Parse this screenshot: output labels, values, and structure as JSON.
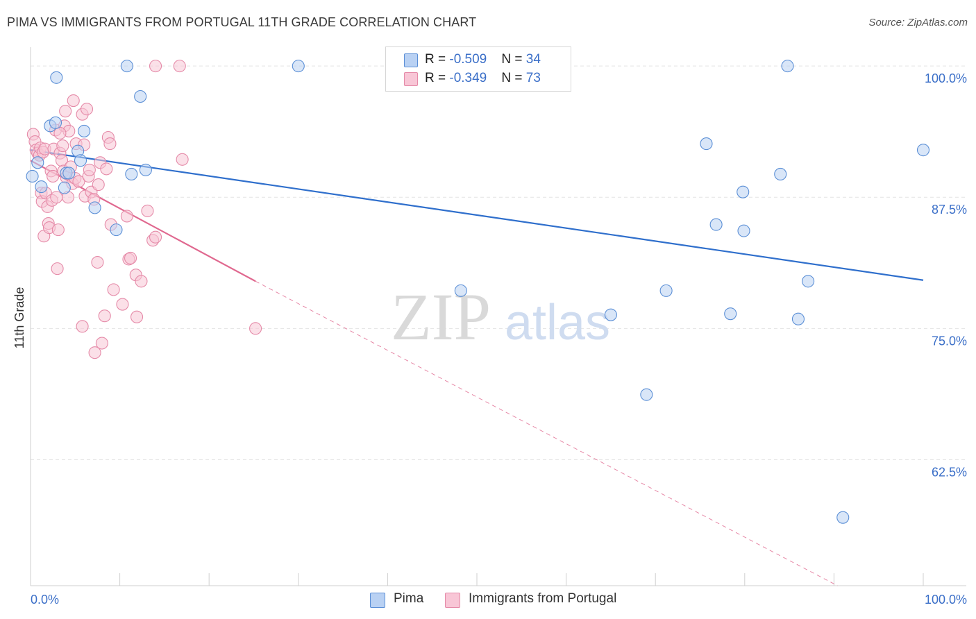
{
  "title": "PIMA VS IMMIGRANTS FROM PORTUGAL 11TH GRADE CORRELATION CHART",
  "source": "Source: ZipAtlas.com",
  "watermark": {
    "zip": "ZIP",
    "atlas": "atlas"
  },
  "colors": {
    "pima_fill": "#b9d1f3",
    "pima_stroke": "#5b8fd6",
    "pima_line": "#2f6fcc",
    "portugal_fill": "#f8c6d6",
    "portugal_stroke": "#e58aa8",
    "portugal_line": "#e0688f",
    "axis_label": "#3b6fc8"
  },
  "legend": {
    "rows": [
      {
        "r_label": "R = ",
        "r_value": "-0.509",
        "n_label": "N = ",
        "n_value": "34"
      },
      {
        "r_label": "R = ",
        "r_value": "-0.349",
        "n_label": "N = ",
        "n_value": "73"
      }
    ]
  },
  "bottom_legend": {
    "pima": "Pima",
    "portugal": "Immigrants from Portugal"
  },
  "chart_data": {
    "type": "scatter",
    "title": "PIMA VS IMMIGRANTS FROM PORTUGAL 11TH GRADE CORRELATION CHART",
    "xlabel": "",
    "ylabel": "11th Grade",
    "xlim": [
      0,
      100
    ],
    "ylim": [
      50.5,
      101
    ],
    "x_tick_labels": [
      "0.0%",
      "100.0%"
    ],
    "y_ticks": [
      100,
      87.5,
      75,
      62.5
    ],
    "y_tick_labels": [
      "100.0%",
      "87.5%",
      "75.0%",
      "62.5%"
    ],
    "grid": true,
    "series": [
      {
        "name": "Pima",
        "r": -0.509,
        "n": 34,
        "trend": {
          "x": [
            0,
            100
          ],
          "y": [
            92.0,
            79.6
          ]
        },
        "points": [
          [
            0.2,
            89.5
          ],
          [
            0.8,
            90.8
          ],
          [
            1.2,
            88.5
          ],
          [
            2.2,
            94.3
          ],
          [
            2.8,
            94.6
          ],
          [
            2.9,
            98.9
          ],
          [
            3.8,
            88.4
          ],
          [
            4.0,
            89.8
          ],
          [
            4.3,
            89.8
          ],
          [
            5.3,
            91.9
          ],
          [
            5.6,
            91.0
          ],
          [
            6.0,
            93.8
          ],
          [
            7.2,
            86.5
          ],
          [
            9.6,
            84.4
          ],
          [
            10.8,
            100.0
          ],
          [
            11.3,
            89.7
          ],
          [
            12.3,
            97.1
          ],
          [
            12.9,
            90.1
          ],
          [
            30.0,
            100.0
          ],
          [
            48.2,
            78.6
          ],
          [
            65.0,
            76.3
          ],
          [
            71.2,
            78.6
          ],
          [
            69.0,
            68.7
          ],
          [
            75.7,
            92.6
          ],
          [
            76.8,
            84.9
          ],
          [
            78.4,
            76.4
          ],
          [
            79.9,
            84.3
          ],
          [
            79.8,
            88.0
          ],
          [
            84.0,
            89.7
          ],
          [
            84.8,
            100.0
          ],
          [
            86.0,
            75.9
          ],
          [
            87.1,
            79.5
          ],
          [
            91.0,
            57.0
          ],
          [
            100.0,
            92.0
          ]
        ]
      },
      {
        "name": "Immigrants from Portugal",
        "r": -0.349,
        "n": 73,
        "trend": {
          "x": [
            0,
            25.2
          ],
          "y": [
            91.0,
            79.5
          ]
        },
        "trend_extension": {
          "x": [
            25.2,
            90.4
          ],
          "y": [
            79.5,
            50.5
          ]
        },
        "points": [
          [
            0.3,
            93.5
          ],
          [
            0.5,
            92.8
          ],
          [
            0.6,
            92.0
          ],
          [
            0.8,
            91.7
          ],
          [
            1.0,
            91.5
          ],
          [
            1.1,
            92.2
          ],
          [
            1.2,
            87.9
          ],
          [
            1.3,
            87.1
          ],
          [
            1.4,
            91.8
          ],
          [
            1.5,
            83.8
          ],
          [
            1.6,
            92.1
          ],
          [
            1.7,
            87.9
          ],
          [
            1.9,
            86.6
          ],
          [
            2.0,
            85.0
          ],
          [
            2.1,
            84.6
          ],
          [
            2.3,
            90.0
          ],
          [
            2.4,
            87.2
          ],
          [
            2.5,
            89.5
          ],
          [
            2.6,
            92.1
          ],
          [
            2.8,
            93.9
          ],
          [
            2.9,
            87.5
          ],
          [
            3.0,
            80.7
          ],
          [
            3.1,
            84.4
          ],
          [
            3.3,
            91.7
          ],
          [
            3.5,
            91.0
          ],
          [
            3.6,
            92.4
          ],
          [
            3.7,
            90.0
          ],
          [
            3.8,
            94.3
          ],
          [
            3.9,
            95.7
          ],
          [
            4.0,
            89.4
          ],
          [
            4.2,
            87.5
          ],
          [
            4.3,
            93.8
          ],
          [
            4.5,
            90.4
          ],
          [
            4.7,
            88.8
          ],
          [
            4.8,
            96.7
          ],
          [
            5.0,
            89.3
          ],
          [
            5.1,
            92.6
          ],
          [
            5.4,
            89.0
          ],
          [
            5.8,
            95.4
          ],
          [
            6.0,
            92.5
          ],
          [
            6.1,
            87.6
          ],
          [
            6.3,
            95.9
          ],
          [
            6.5,
            89.5
          ],
          [
            6.6,
            90.1
          ],
          [
            6.8,
            88.0
          ],
          [
            7.1,
            87.3
          ],
          [
            7.5,
            81.3
          ],
          [
            7.6,
            88.7
          ],
          [
            7.8,
            90.8
          ],
          [
            8.0,
            73.6
          ],
          [
            8.3,
            76.2
          ],
          [
            8.5,
            90.2
          ],
          [
            8.7,
            93.2
          ],
          [
            8.9,
            92.6
          ],
          [
            9.0,
            84.9
          ],
          [
            9.3,
            78.7
          ],
          [
            10.3,
            77.3
          ],
          [
            10.8,
            85.7
          ],
          [
            11.0,
            81.6
          ],
          [
            11.2,
            81.7
          ],
          [
            11.8,
            80.1
          ],
          [
            11.9,
            76.1
          ],
          [
            12.4,
            79.5
          ],
          [
            13.1,
            86.2
          ],
          [
            13.7,
            83.4
          ],
          [
            14.0,
            83.7
          ],
          [
            14.0,
            100.0
          ],
          [
            16.7,
            100.0
          ],
          [
            17.0,
            91.1
          ],
          [
            25.2,
            75.0
          ],
          [
            5.8,
            75.2
          ],
          [
            7.2,
            72.7
          ],
          [
            3.3,
            93.6
          ]
        ]
      }
    ]
  }
}
